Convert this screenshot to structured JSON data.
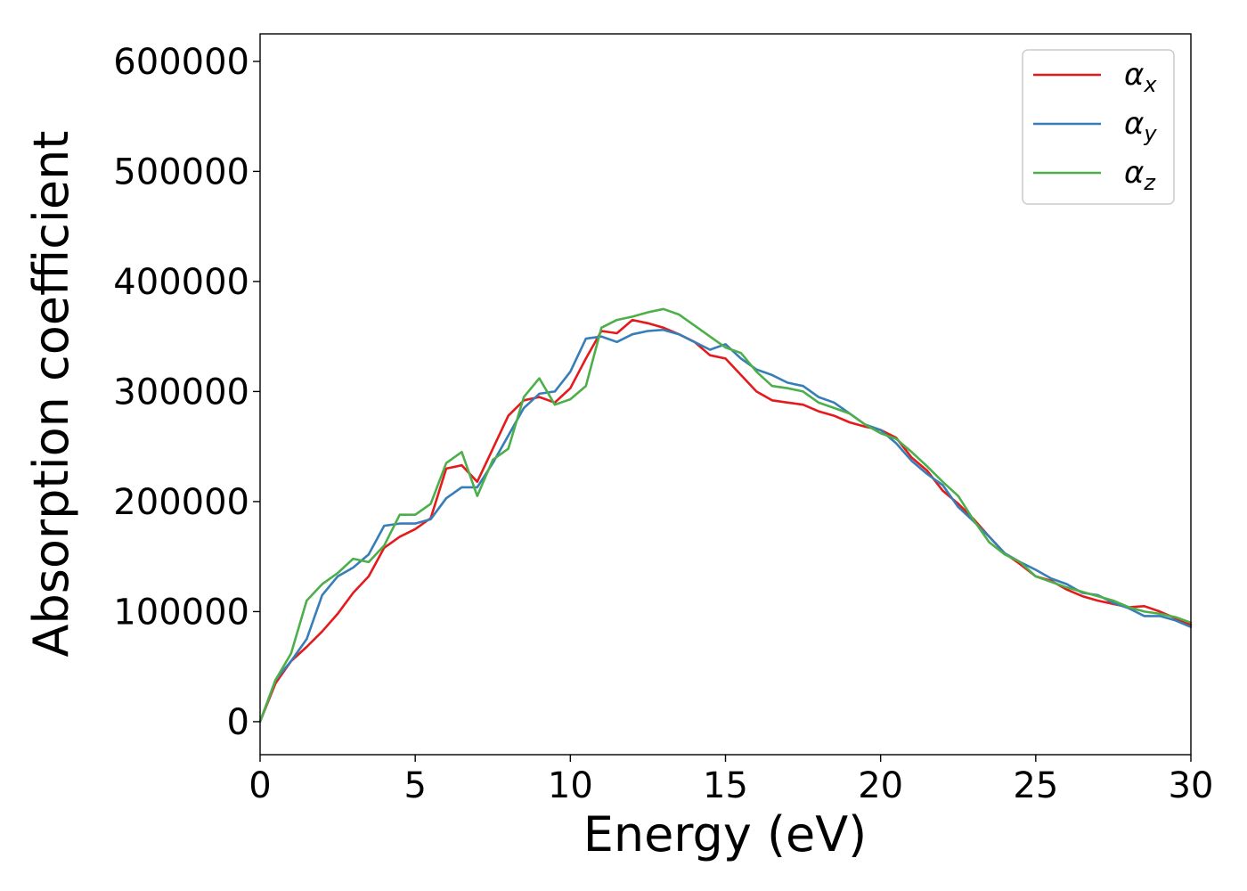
{
  "chart_data": {
    "type": "line",
    "title": "",
    "xlabel": "Energy (eV)",
    "ylabel": "Absorption coefficient",
    "xlim": [
      0,
      30
    ],
    "ylim": [
      -30000,
      625000
    ],
    "xticks": [
      0,
      5,
      10,
      15,
      20,
      25,
      30
    ],
    "yticks": [
      0,
      100000,
      200000,
      300000,
      400000,
      500000,
      600000
    ],
    "grid": false,
    "legend": "top-right",
    "series": [
      {
        "name": "α",
        "sub": "x",
        "color": "#e41a1c",
        "x": [
          0,
          0.5,
          1,
          1.5,
          2,
          2.5,
          3,
          3.5,
          4,
          4.5,
          5,
          5.5,
          6,
          6.5,
          7,
          7.5,
          8,
          8.5,
          9,
          9.5,
          10,
          10.5,
          11,
          11.5,
          12,
          12.5,
          13,
          13.5,
          14,
          14.5,
          15,
          15.5,
          16,
          16.5,
          17,
          17.5,
          18,
          18.5,
          19,
          19.5,
          20,
          20.5,
          21,
          21.5,
          22,
          22.5,
          23,
          23.5,
          24,
          24.5,
          25,
          25.5,
          26,
          26.5,
          27,
          27.5,
          28,
          28.5,
          29,
          29.5,
          30
        ],
        "values": [
          0,
          35000,
          55000,
          68000,
          82000,
          98000,
          117000,
          132000,
          158000,
          168000,
          175000,
          185000,
          230000,
          233000,
          218000,
          248000,
          278000,
          292000,
          295000,
          290000,
          303000,
          330000,
          355000,
          353000,
          365000,
          362000,
          358000,
          352000,
          345000,
          333000,
          330000,
          315000,
          300000,
          292000,
          290000,
          288000,
          282000,
          278000,
          272000,
          268000,
          265000,
          258000,
          240000,
          228000,
          210000,
          198000,
          184000,
          168000,
          153000,
          143000,
          132000,
          128000,
          120000,
          114000,
          110000,
          107000,
          104000,
          105000,
          100000,
          94000,
          88000
        ]
      },
      {
        "name": "α",
        "sub": "y",
        "color": "#377eb8",
        "x": [
          0,
          0.5,
          1,
          1.5,
          2,
          2.5,
          3,
          3.5,
          4,
          4.5,
          5,
          5.5,
          6,
          6.5,
          7,
          7.5,
          8,
          8.5,
          9,
          9.5,
          10,
          10.5,
          11,
          11.5,
          12,
          12.5,
          13,
          13.5,
          14,
          14.5,
          15,
          15.5,
          16,
          16.5,
          17,
          17.5,
          18,
          18.5,
          19,
          19.5,
          20,
          20.5,
          21,
          21.5,
          22,
          22.5,
          23,
          23.5,
          24,
          24.5,
          25,
          25.5,
          26,
          26.5,
          27,
          27.5,
          28,
          28.5,
          29,
          29.5,
          30
        ],
        "values": [
          0,
          38000,
          55000,
          75000,
          115000,
          132000,
          140000,
          152000,
          178000,
          180000,
          180000,
          184000,
          203000,
          213000,
          213000,
          235000,
          260000,
          285000,
          298000,
          300000,
          318000,
          348000,
          350000,
          345000,
          352000,
          355000,
          356000,
          352000,
          345000,
          338000,
          343000,
          330000,
          320000,
          315000,
          308000,
          305000,
          295000,
          290000,
          280000,
          270000,
          265000,
          253000,
          237000,
          225000,
          215000,
          195000,
          182000,
          168000,
          153000,
          145000,
          138000,
          130000,
          125000,
          117000,
          115000,
          108000,
          103000,
          96000,
          96000,
          92000,
          86000
        ]
      },
      {
        "name": "α",
        "sub": "z",
        "color": "#4daf4a",
        "x": [
          0,
          0.5,
          1,
          1.5,
          2,
          2.5,
          3,
          3.5,
          4,
          4.5,
          5,
          5.5,
          6,
          6.5,
          7,
          7.5,
          8,
          8.5,
          9,
          9.5,
          10,
          10.5,
          11,
          11.5,
          12,
          12.5,
          13,
          13.5,
          14,
          14.5,
          15,
          15.5,
          16,
          16.5,
          17,
          17.5,
          18,
          18.5,
          19,
          19.5,
          20,
          20.5,
          21,
          21.5,
          22,
          22.5,
          23,
          23.5,
          24,
          24.5,
          25,
          25.5,
          26,
          26.5,
          27,
          27.5,
          28,
          28.5,
          29,
          29.5,
          30
        ],
        "values": [
          0,
          38000,
          62000,
          110000,
          125000,
          135000,
          148000,
          145000,
          160000,
          188000,
          188000,
          198000,
          235000,
          245000,
          205000,
          238000,
          248000,
          295000,
          312000,
          288000,
          293000,
          305000,
          358000,
          365000,
          368000,
          372000,
          375000,
          370000,
          360000,
          350000,
          340000,
          335000,
          318000,
          305000,
          303000,
          300000,
          290000,
          285000,
          280000,
          270000,
          262000,
          257000,
          245000,
          232000,
          218000,
          205000,
          183000,
          163000,
          152000,
          145000,
          132000,
          127000,
          122000,
          118000,
          114000,
          110000,
          104000,
          100000,
          98000,
          95000,
          90000
        ]
      }
    ]
  }
}
